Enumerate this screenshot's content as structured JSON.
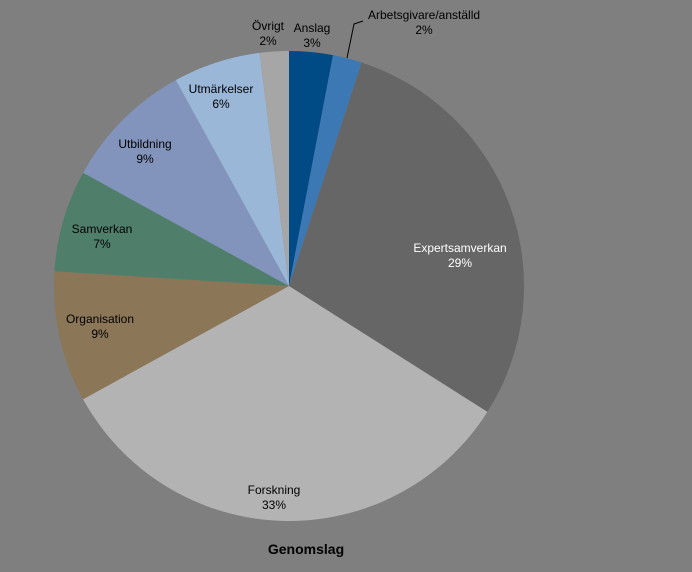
{
  "chart_data": {
    "type": "pie",
    "title": "Genomslag",
    "start_angle_deg": 0,
    "direction": "clockwise",
    "background": "#7f7f7f",
    "slices": [
      {
        "label": "Anslag",
        "value": 3,
        "value_label": "3%",
        "color": "#004a86",
        "label_color": "#000000"
      },
      {
        "label": "Arbetsgivare/anställd",
        "value": 2,
        "value_label": "2%",
        "color": "#3b78b4",
        "label_color": "#000000"
      },
      {
        "label": "Expertsamverkan",
        "value": 29,
        "value_label": "29%",
        "color": "#666666",
        "label_color": "#ffffff"
      },
      {
        "label": "Forskning",
        "value": 33,
        "value_label": "33%",
        "color": "#b3b3b3",
        "label_color": "#000000"
      },
      {
        "label": "Organisation",
        "value": 9,
        "value_label": "9%",
        "color": "#8b7657",
        "label_color": "#000000"
      },
      {
        "label": "Samverkan",
        "value": 7,
        "value_label": "7%",
        "color": "#4f7f6a",
        "label_color": "#000000"
      },
      {
        "label": "Utbildning",
        "value": 9,
        "value_label": "9%",
        "color": "#8294bb",
        "label_color": "#000000"
      },
      {
        "label": "Utmärkelser",
        "value": 6,
        "value_label": "6%",
        "color": "#9ab7d8",
        "label_color": "#000000"
      },
      {
        "label": "Övrigt",
        "value": 2,
        "value_label": "2%",
        "color": "#a6a6a6",
        "label_color": "#000000"
      }
    ]
  }
}
